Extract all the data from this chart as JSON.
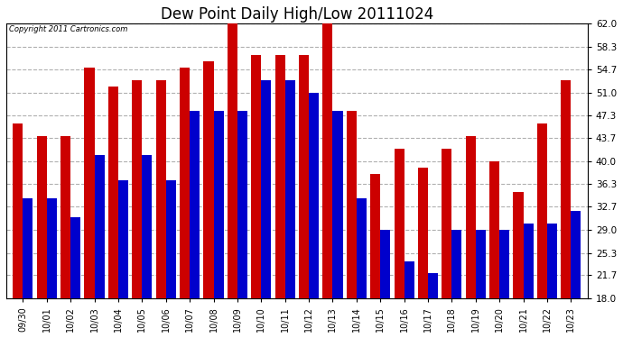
{
  "title": "Dew Point Daily High/Low 20111024",
  "copyright": "Copyright 2011 Cartronics.com",
  "dates": [
    "09/30",
    "10/01",
    "10/02",
    "10/03",
    "10/04",
    "10/05",
    "10/06",
    "10/07",
    "10/08",
    "10/09",
    "10/10",
    "10/11",
    "10/12",
    "10/13",
    "10/14",
    "10/15",
    "10/16",
    "10/17",
    "10/18",
    "10/19",
    "10/20",
    "10/21",
    "10/22",
    "10/23"
  ],
  "highs": [
    46,
    44,
    44,
    55,
    52,
    53,
    53,
    55,
    56,
    62,
    57,
    57,
    57,
    63,
    48,
    38,
    42,
    39,
    42,
    44,
    40,
    35,
    46,
    53
  ],
  "lows": [
    34,
    34,
    31,
    41,
    37,
    41,
    37,
    48,
    48,
    48,
    53,
    53,
    51,
    48,
    34,
    29,
    24,
    22,
    29,
    29,
    29,
    30,
    30,
    32
  ],
  "high_color": "#cc0000",
  "low_color": "#0000cc",
  "background_color": "#ffffff",
  "plot_bg_color": "#ffffff",
  "ylim_min": 18.0,
  "ylim_max": 62.0,
  "yticks": [
    18.0,
    21.7,
    25.3,
    29.0,
    32.7,
    36.3,
    40.0,
    43.7,
    47.3,
    51.0,
    54.7,
    58.3,
    62.0
  ],
  "grid_color": "#b0b0b0",
  "title_fontsize": 12,
  "bar_width": 0.42,
  "bar_bottom": 18.0,
  "figsize": [
    6.9,
    3.75
  ],
  "dpi": 100
}
